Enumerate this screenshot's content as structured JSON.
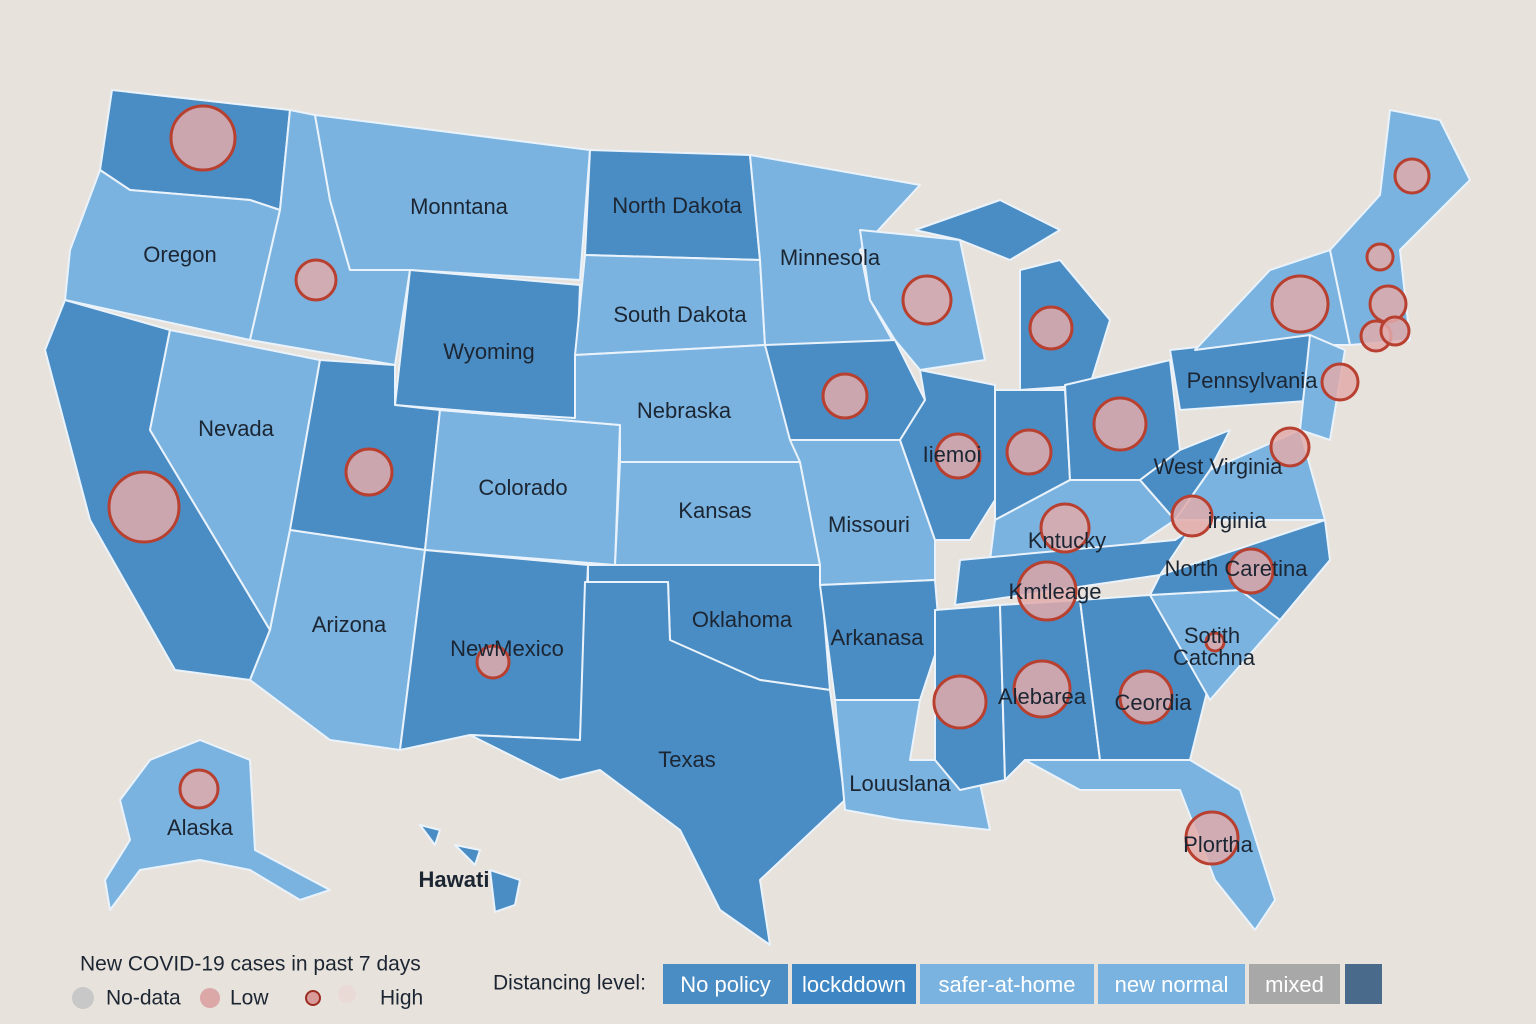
{
  "map": {
    "state_labels": [
      "Oregon",
      "Monntana",
      "North Dakota",
      "Minnesola",
      "South Dakota",
      "Wyoming",
      "Nevada",
      "Nebraska",
      "Colorado",
      "Kansas",
      "Missouri",
      "Arizona",
      "NewMexico",
      "Oklahoma",
      "Arkanasa",
      "Texas",
      "Louuslana",
      "Alaska",
      "Hawati",
      "Iiemoi",
      "Kntucky",
      "Kmtleage",
      "Pennsylvania",
      "West Virginia",
      "irginia",
      "North Caretina",
      "Sotith",
      "Catchna",
      "Alebarea",
      "Ceordia",
      "Plortha"
    ]
  },
  "legend": {
    "cases": {
      "title": "New COVID-19 cases in past 7 days",
      "items": [
        "No-data",
        "Low",
        "High"
      ]
    },
    "distancing": {
      "title": "Distancing level:",
      "items": [
        "No policy",
        "lockddown",
        "safer-at-home",
        "new normal",
        "mixed"
      ]
    }
  }
}
